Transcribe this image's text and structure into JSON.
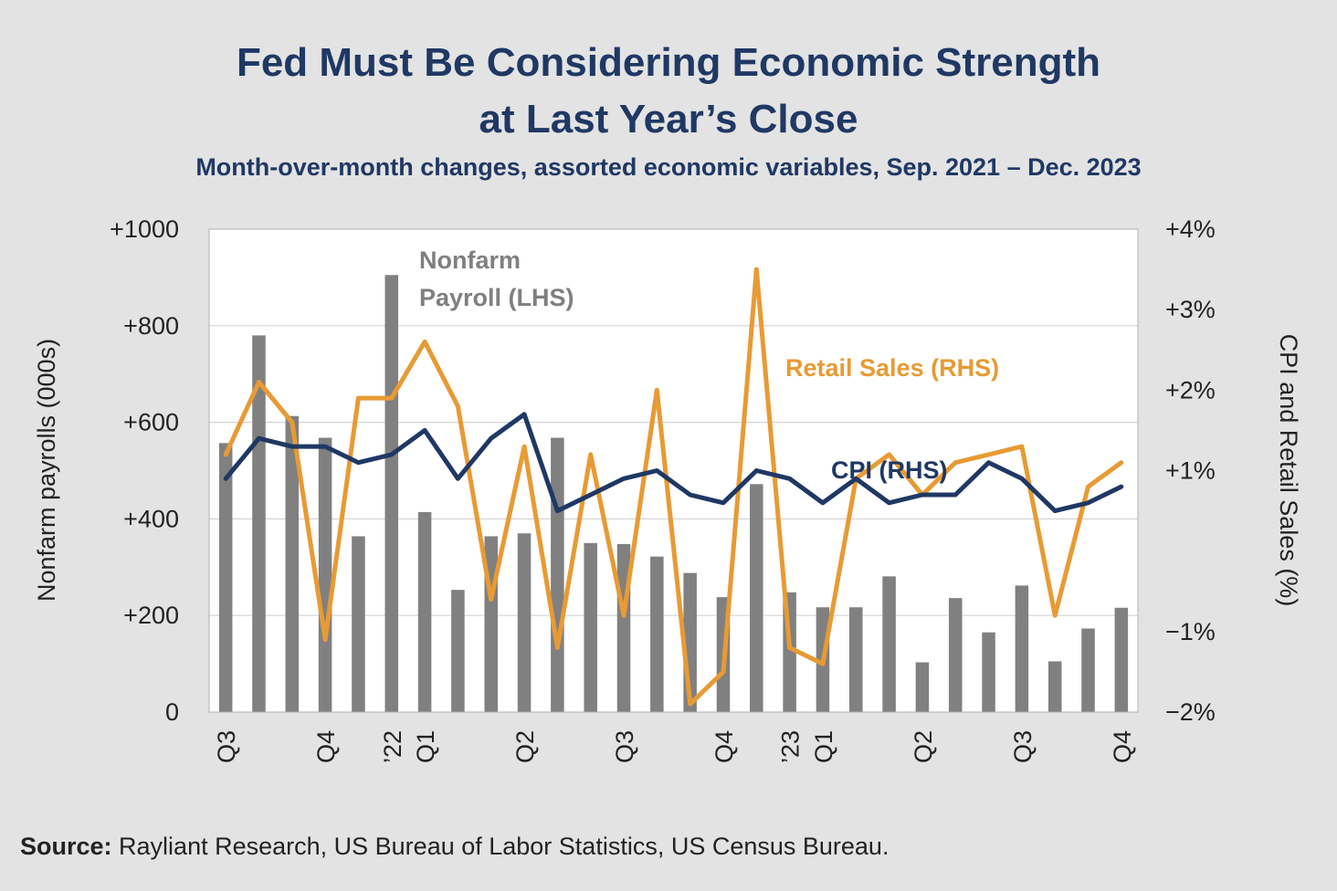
{
  "title_line1": "Fed Must Be Considering Economic Strength",
  "title_line2": "at Last Year’s Close",
  "subtitle": "Month-over-month changes, assorted economic variables, Sep. 2021 – Dec. 2023",
  "source_label": "Source:",
  "source_text": "Rayliant Research, US Bureau of Labor Statistics, US Census Bureau.",
  "colors": {
    "bars": "#808080",
    "cpi": "#1f3864",
    "retail": "#e89a34",
    "title": "#1f3864",
    "payroll_label": "#7f7f7f"
  },
  "chart_data": {
    "type": "bar+line",
    "title": "Fed Must Be Considering Economic Strength at Last Year’s Close",
    "ylabel_left": "Nonfarm payrolls (000s)",
    "ylabel_right": "CPI and Retail Sales (%)",
    "ylim_left": [
      0,
      1000
    ],
    "ylim_right": [
      -2,
      4
    ],
    "left_ticks": [
      "0",
      "+200",
      "+400",
      "+600",
      "+800",
      "+1000"
    ],
    "left_tick_values": [
      0,
      200,
      400,
      600,
      800,
      1000
    ],
    "right_ticks": [
      "−2%",
      "−1%",
      "+1%",
      "+2%",
      "+3%",
      "+4%"
    ],
    "right_tick_values": [
      -2,
      -1,
      1,
      2,
      3,
      4
    ],
    "x_labels": [
      {
        "index": 0,
        "label": "Q3"
      },
      {
        "index": 3,
        "label": "Q4"
      },
      {
        "index": 5,
        "label": "’22"
      },
      {
        "index": 6,
        "label": "Q1"
      },
      {
        "index": 9,
        "label": "Q2"
      },
      {
        "index": 12,
        "label": "Q3"
      },
      {
        "index": 15,
        "label": "Q4"
      },
      {
        "index": 17,
        "label": "’23"
      },
      {
        "index": 18,
        "label": "Q1"
      },
      {
        "index": 21,
        "label": "Q2"
      },
      {
        "index": 24,
        "label": "Q3"
      },
      {
        "index": 27,
        "label": "Q4"
      }
    ],
    "series": [
      {
        "name": "Nonfarm Payroll (LHS)",
        "type": "bar",
        "axis": "left",
        "values": [
          557,
          780,
          613,
          568,
          364,
          905,
          414,
          253,
          364,
          370,
          568,
          350,
          348,
          322,
          288,
          238,
          472,
          248,
          217,
          217,
          281,
          103,
          236,
          165,
          262,
          105,
          173,
          216
        ]
      },
      {
        "name": "CPI (RHS)",
        "type": "line",
        "axis": "right",
        "values": [
          0.9,
          1.4,
          1.3,
          1.3,
          1.1,
          1.2,
          1.5,
          0.9,
          1.4,
          1.7,
          0.5,
          0.7,
          0.9,
          1.0,
          0.7,
          0.6,
          1.0,
          0.9,
          0.6,
          0.9,
          0.6,
          0.7,
          0.7,
          1.1,
          0.9,
          0.5,
          0.6,
          0.8
        ]
      },
      {
        "name": "Retail Sales (RHS)",
        "type": "line",
        "axis": "right",
        "values": [
          1.2,
          2.1,
          1.6,
          -1.1,
          1.9,
          1.9,
          2.6,
          1.8,
          -0.6,
          1.3,
          -1.2,
          1.2,
          -0.8,
          2.0,
          -1.9,
          -1.5,
          3.5,
          -1.2,
          -1.4,
          0.9,
          1.2,
          0.7,
          1.1,
          1.2,
          1.3,
          -0.8,
          0.8,
          1.1
        ]
      }
    ],
    "annotations": {
      "payroll_line1": "Nonfarm",
      "payroll_line2": "Payroll (LHS)",
      "retail": "Retail Sales (RHS)",
      "cpi": "CPI (RHS)"
    }
  }
}
